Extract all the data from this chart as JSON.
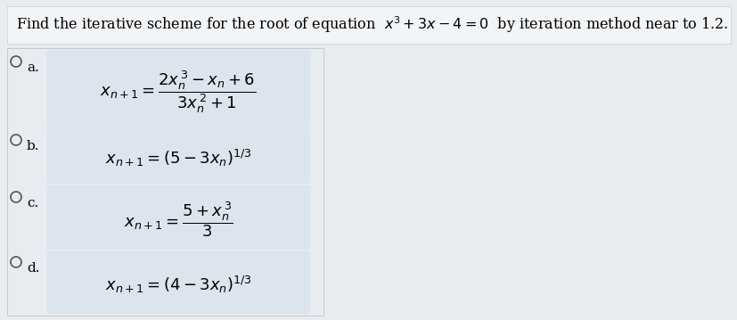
{
  "bg_page": "#e8ecf0",
  "bg_title": "#f0f3f6",
  "bg_box": "#dce5ed",
  "title_text": "Find the iterative scheme for the root of equation  $x^3 + 3x - 4 = 0$  by iteration method near to 1.2.",
  "options": [
    "a.",
    "b.",
    "c.",
    "d."
  ],
  "formula_a": "$x_{n+1} = \\dfrac{2x_n^{\\,3} - x_n + 6}{3x_n^{\\,2} + 1}$",
  "formula_b": "$x_{n+1} = (5 - 3x_n)^{1/3}$",
  "formula_c": "$x_{n+1} = \\dfrac{5 + x_n^{\\,3}}{3}$",
  "formula_d": "$x_{n+1} = (4 - 3x_n)^{1/3}$",
  "title_fontsize": 11.5,
  "option_fontsize": 11,
  "formula_fontsize": 13
}
